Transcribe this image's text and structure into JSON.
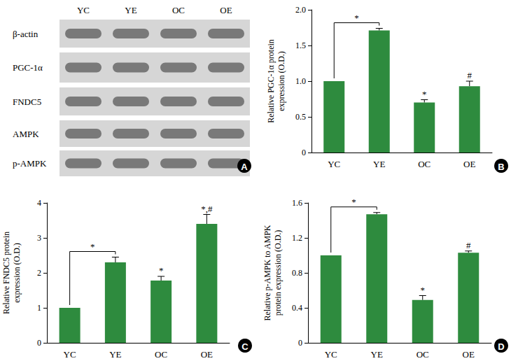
{
  "chart_data": [
    {
      "type": "bar",
      "ylabel": "Relative PGC-1α protein\nexpression (O.D.)",
      "categories": [
        "YC",
        "YE",
        "OC",
        "OE"
      ],
      "values": [
        1.0,
        1.71,
        0.7,
        0.93
      ],
      "errors": [
        0,
        0.03,
        0.04,
        0.07
      ],
      "color": "#2e8b3e",
      "ylim": [
        0,
        2
      ],
      "yticks": [
        0,
        0.5,
        {
          "value": 1,
          "label": "1.0"
        },
        1.5,
        {
          "value": 2,
          "label": "2.0"
        }
      ],
      "grid": false,
      "annotations": [
        {
          "text": "B",
          "kind": "panel"
        },
        {
          "text": "*",
          "kind": "bracket",
          "from": "YC",
          "to": "YE"
        },
        {
          "text": "*",
          "kind": "bar",
          "category": "OC"
        },
        {
          "text": "#",
          "kind": "bar",
          "category": "OE"
        }
      ]
    },
    {
      "type": "bar",
      "ylabel": "Relative FNDC5 protein\nexpression (O.D.)",
      "categories": [
        "YC",
        "YE",
        "OC",
        "OE"
      ],
      "values": [
        1.0,
        2.3,
        1.78,
        3.4
      ],
      "errors": [
        0,
        0.15,
        0.12,
        0.27
      ],
      "color": "#2e8b3e",
      "ylim": [
        0,
        4
      ],
      "yticks": [
        0,
        1,
        2,
        3,
        4
      ],
      "grid": false,
      "annotations": [
        {
          "text": "C",
          "kind": "panel"
        },
        {
          "text": "*",
          "kind": "bracket",
          "from": "YC",
          "to": "YE"
        },
        {
          "text": "*",
          "kind": "bar",
          "category": "OC"
        },
        {
          "text": "*,#",
          "kind": "bar",
          "category": "OE"
        }
      ]
    },
    {
      "type": "bar",
      "ylabel": "Relative p-AMPK to AMPK\nprotein expression (O.D.)",
      "categories": [
        "YC",
        "YE",
        "OC",
        "OE"
      ],
      "values": [
        1.0,
        1.47,
        0.49,
        1.03
      ],
      "errors": [
        0,
        0.02,
        0.05,
        0.02
      ],
      "color": "#2e8b3e",
      "ylim": [
        0,
        1.6
      ],
      "yticks": [
        0,
        0.4,
        0.8,
        1.2,
        1.6
      ],
      "grid": false,
      "annotations": [
        {
          "text": "D",
          "kind": "panel"
        },
        {
          "text": "*",
          "kind": "bracket",
          "from": "YC",
          "to": "YE"
        },
        {
          "text": "*",
          "kind": "bar",
          "category": "OC"
        },
        {
          "text": "#",
          "kind": "bar",
          "category": "OE"
        }
      ]
    }
  ],
  "blot": {
    "label": "A",
    "lanes": [
      "YC",
      "YE",
      "OC",
      "OE"
    ],
    "rows": [
      "β-actin",
      "PGC-1α",
      "FNDC5",
      "AMPK",
      "p-AMPK"
    ]
  }
}
